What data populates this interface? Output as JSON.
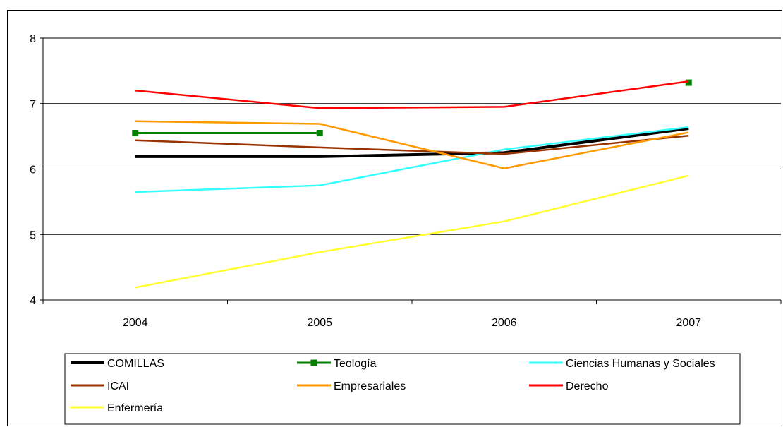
{
  "chart_data": {
    "type": "line",
    "x": [
      "2004",
      "2005",
      "2006",
      "2007"
    ],
    "ylim": [
      4,
      8
    ],
    "yticks": [
      "4",
      "5",
      "6",
      "7",
      "8"
    ],
    "grid": "horizontal",
    "legend_position": "bottom",
    "series": [
      {
        "name": "COMILLAS",
        "color": "#000000",
        "values": [
          6.19,
          6.19,
          6.25,
          6.62
        ]
      },
      {
        "name": "Teología",
        "color": "#008000",
        "marker": "square",
        "values": [
          6.55,
          6.55,
          null,
          7.32
        ]
      },
      {
        "name": "Ciencias Humanas y Sociales",
        "color": "#33ffff",
        "values": [
          5.65,
          5.75,
          6.3,
          6.64
        ]
      },
      {
        "name": "ICAI",
        "color": "#993300",
        "values": [
          6.44,
          6.33,
          6.23,
          6.51
        ]
      },
      {
        "name": "Empresariales",
        "color": "#ff9900",
        "values": [
          6.73,
          6.69,
          6.01,
          6.56
        ]
      },
      {
        "name": "Derecho",
        "color": "#ff0000",
        "values": [
          7.2,
          6.93,
          6.95,
          7.34
        ]
      },
      {
        "name": "Enfermería",
        "color": "#ffff33",
        "values": [
          4.19,
          4.73,
          5.2,
          5.9
        ]
      }
    ]
  }
}
